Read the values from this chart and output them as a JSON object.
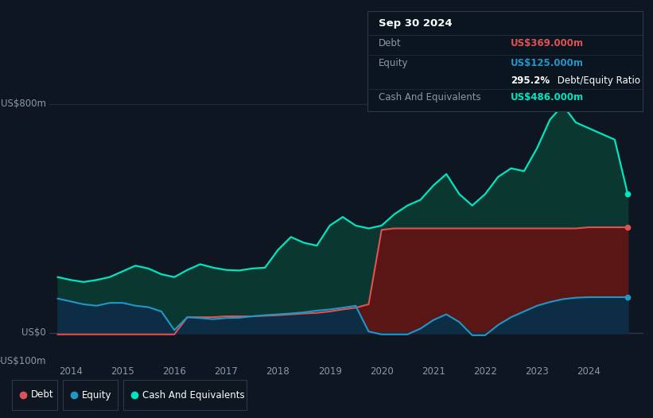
{
  "bg_color": "#0e1621",
  "plot_bg_color": "#0e1621",
  "ylabel_800": "US$800m",
  "ylabel_0": "US$0",
  "ylabel_neg100": "-US$100m",
  "ylim": [
    -100,
    900
  ],
  "debt_color": "#e05252",
  "equity_color": "#2196c8",
  "cash_color": "#00e5c0",
  "debt_fill_color": "#5a1515",
  "equity_fill_color": "#0d2d45",
  "cash_fill_color": "#0a3830",
  "grid_color": "#1e2d3d",
  "zero_line_color": "#2a3a4a",
  "xtick_years": [
    2014,
    2015,
    2016,
    2017,
    2018,
    2019,
    2020,
    2021,
    2022,
    2023,
    2024
  ],
  "years": [
    2013.75,
    2014.0,
    2014.25,
    2014.5,
    2014.75,
    2015.0,
    2015.25,
    2015.5,
    2015.75,
    2016.0,
    2016.25,
    2016.5,
    2016.75,
    2017.0,
    2017.25,
    2017.5,
    2017.75,
    2018.0,
    2018.25,
    2018.5,
    2018.75,
    2019.0,
    2019.25,
    2019.5,
    2019.75,
    2020.0,
    2020.25,
    2020.5,
    2020.75,
    2021.0,
    2021.25,
    2021.5,
    2021.75,
    2022.0,
    2022.25,
    2022.5,
    2022.75,
    2023.0,
    2023.25,
    2023.5,
    2023.75,
    2024.0,
    2024.25,
    2024.5,
    2024.75
  ],
  "debt": [
    -5,
    -5,
    -5,
    -5,
    -5,
    -5,
    -5,
    -5,
    -5,
    -5,
    55,
    55,
    55,
    58,
    58,
    58,
    60,
    62,
    65,
    68,
    70,
    75,
    82,
    88,
    100,
    360,
    365,
    365,
    365,
    365,
    365,
    365,
    365,
    365,
    365,
    365,
    365,
    365,
    365,
    365,
    365,
    369,
    369,
    369,
    369
  ],
  "equity": [
    120,
    110,
    100,
    95,
    105,
    105,
    95,
    90,
    75,
    10,
    55,
    52,
    48,
    52,
    53,
    58,
    62,
    65,
    68,
    72,
    78,
    82,
    88,
    95,
    5,
    -5,
    -5,
    -5,
    15,
    45,
    65,
    38,
    -8,
    -8,
    28,
    55,
    75,
    95,
    108,
    118,
    123,
    125,
    125,
    125,
    125
  ],
  "cash": [
    195,
    185,
    178,
    185,
    195,
    215,
    235,
    225,
    205,
    195,
    220,
    240,
    228,
    220,
    218,
    225,
    228,
    290,
    335,
    315,
    305,
    375,
    405,
    375,
    365,
    375,
    415,
    445,
    465,
    515,
    555,
    485,
    445,
    485,
    545,
    575,
    565,
    645,
    745,
    795,
    735,
    715,
    695,
    675,
    486
  ],
  "info_title": "Sep 30 2024",
  "info_debt_label": "Debt",
  "info_debt_value": "US$369.000m",
  "info_equity_label": "Equity",
  "info_equity_value": "US$125.000m",
  "info_ratio": "295.2%",
  "info_ratio_suffix": " Debt/Equity Ratio",
  "info_cash_label": "Cash And Equivalents",
  "info_cash_value": "US$486.000m",
  "legend_items": [
    {
      "label": "Debt",
      "color": "#e05252"
    },
    {
      "label": "Equity",
      "color": "#2196c8"
    },
    {
      "label": "Cash And Equivalents",
      "color": "#00e5c0"
    }
  ]
}
